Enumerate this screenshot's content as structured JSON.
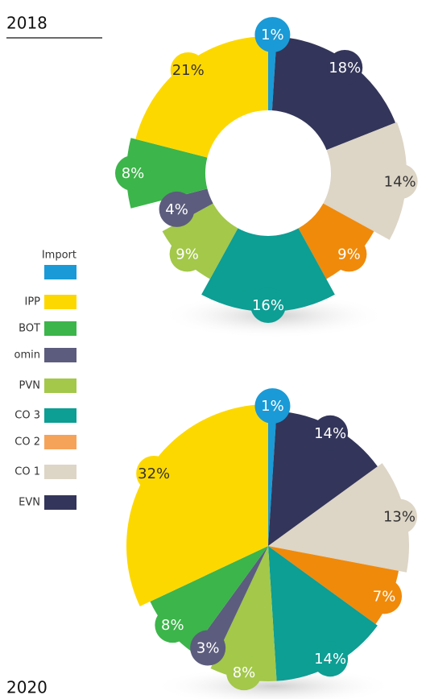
{
  "chart_data": [
    {
      "type": "donut",
      "title": "2018",
      "values": [
        1,
        18,
        14,
        9,
        16,
        9,
        4,
        8,
        21
      ],
      "value_labels": [
        "1%",
        "18%",
        "14%",
        "9%",
        "16%",
        "9%",
        "4%",
        "8%",
        "21%"
      ],
      "colors": [
        "#1a9ad6",
        "#33355a",
        "#ddd5c6",
        "#f08a0b",
        "#0d9e94",
        "#a3c84a",
        "#5c5c7e",
        "#3cb54a",
        "#fdd800"
      ]
    },
    {
      "type": "pie",
      "title": "2020",
      "values": [
        1,
        14,
        13,
        7,
        14,
        8,
        3,
        8,
        32
      ],
      "value_labels": [
        "1%",
        "14%",
        "13%",
        "7%",
        "14%",
        "8%",
        "3%",
        "8%",
        "32%"
      ],
      "colors": [
        "#1a9ad6",
        "#33355a",
        "#ddd5c6",
        "#f08a0b",
        "#0d9e94",
        "#a3c84a",
        "#5c5c7e",
        "#3cb54a",
        "#fdd800"
      ]
    }
  ],
  "legend": {
    "labels": [
      "Import",
      "IPP",
      "BOT",
      "omin",
      "PVN",
      "CO 3",
      "CO 2",
      "CO 1",
      "EVN"
    ],
    "colors": [
      "#1a9ad6",
      "#fdd800",
      "#3cb54a",
      "#5c5c7e",
      "#a3c84a",
      "#0d9e94",
      "#f6a35a",
      "#ddd5c6",
      "#33355a"
    ]
  }
}
